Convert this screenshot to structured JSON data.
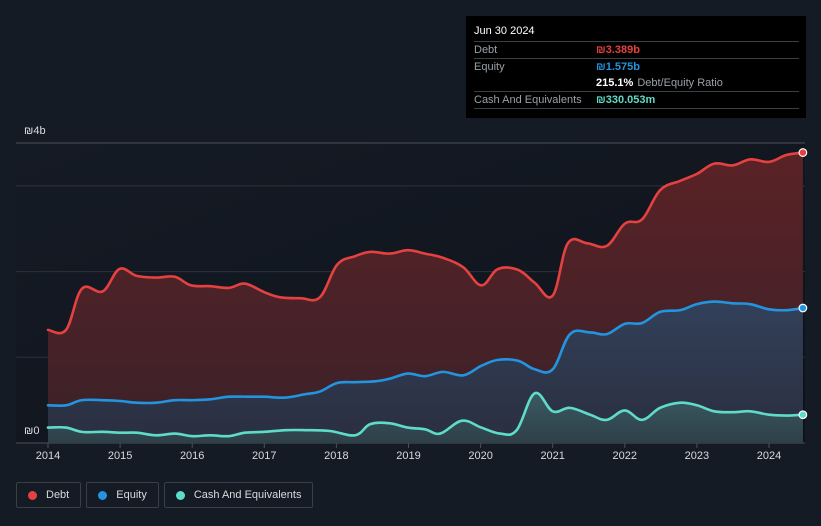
{
  "tooltip": {
    "date": "Jun 30 2024",
    "debt_label": "Debt",
    "debt_value": "₪3.389b",
    "equity_label": "Equity",
    "equity_value": "₪1.575b",
    "ratio_value": "215.1%",
    "ratio_label": "Debt/Equity Ratio",
    "cash_label": "Cash And Equivalents",
    "cash_value": "₪330.053m"
  },
  "colors": {
    "debt": "#e64141",
    "equity": "#2394df",
    "cash": "#5fdcc8"
  },
  "legend": [
    {
      "label": "Debt",
      "color": "#e64141"
    },
    {
      "label": "Equity",
      "color": "#2394df"
    },
    {
      "label": "Cash And Equivalents",
      "color": "#5fdcc8"
    }
  ],
  "chart_data": {
    "type": "area",
    "title": "",
    "xlabel": "",
    "ylabel": "",
    "unit": "₪ billions",
    "ylim": [
      0,
      3.5
    ],
    "xlim": [
      2014.0,
      2024.5
    ],
    "y_tick_labels": [
      {
        "value": 0,
        "label": "₪0"
      },
      {
        "value": 4,
        "label": "₪4b"
      }
    ],
    "gridlines_at": [
      1,
      2,
      3
    ],
    "x_tick_labels": [
      "2014",
      "2015",
      "2016",
      "2017",
      "2018",
      "2019",
      "2020",
      "2021",
      "2022",
      "2023",
      "2024"
    ],
    "grid": true,
    "legend_position": "bottom-left",
    "series": [
      {
        "name": "Debt",
        "points": [
          [
            2014.0,
            1.32
          ],
          [
            2014.25,
            1.32
          ],
          [
            2014.47,
            1.8
          ],
          [
            2014.76,
            1.77
          ],
          [
            2014.99,
            2.03
          ],
          [
            2015.23,
            1.95
          ],
          [
            2015.5,
            1.93
          ],
          [
            2015.76,
            1.94
          ],
          [
            2015.98,
            1.84
          ],
          [
            2016.25,
            1.83
          ],
          [
            2016.51,
            1.81
          ],
          [
            2016.73,
            1.86
          ],
          [
            2017.0,
            1.76
          ],
          [
            2017.22,
            1.7
          ],
          [
            2017.5,
            1.69
          ],
          [
            2017.77,
            1.7
          ],
          [
            2018.01,
            2.08
          ],
          [
            2018.26,
            2.18
          ],
          [
            2018.47,
            2.23
          ],
          [
            2018.74,
            2.21
          ],
          [
            2018.99,
            2.25
          ],
          [
            2019.23,
            2.21
          ],
          [
            2019.48,
            2.16
          ],
          [
            2019.76,
            2.05
          ],
          [
            2020.01,
            1.84
          ],
          [
            2020.24,
            2.03
          ],
          [
            2020.52,
            2.02
          ],
          [
            2020.75,
            1.87
          ],
          [
            2021.0,
            1.72
          ],
          [
            2021.21,
            2.33
          ],
          [
            2021.48,
            2.33
          ],
          [
            2021.75,
            2.3
          ],
          [
            2022.0,
            2.56
          ],
          [
            2022.24,
            2.61
          ],
          [
            2022.49,
            2.95
          ],
          [
            2022.77,
            3.06
          ],
          [
            2023.0,
            3.14
          ],
          [
            2023.24,
            3.26
          ],
          [
            2023.5,
            3.24
          ],
          [
            2023.74,
            3.31
          ],
          [
            2024.0,
            3.28
          ],
          [
            2024.24,
            3.36
          ],
          [
            2024.47,
            3.389
          ]
        ]
      },
      {
        "name": "Equity",
        "points": [
          [
            2014.0,
            0.44
          ],
          [
            2014.25,
            0.44
          ],
          [
            2014.47,
            0.5
          ],
          [
            2014.76,
            0.5
          ],
          [
            2015.0,
            0.49
          ],
          [
            2015.23,
            0.47
          ],
          [
            2015.5,
            0.47
          ],
          [
            2015.76,
            0.5
          ],
          [
            2016.0,
            0.5
          ],
          [
            2016.25,
            0.51
          ],
          [
            2016.51,
            0.54
          ],
          [
            2016.8,
            0.54
          ],
          [
            2017.0,
            0.54
          ],
          [
            2017.29,
            0.53
          ],
          [
            2017.57,
            0.57
          ],
          [
            2017.77,
            0.6
          ],
          [
            2018.01,
            0.7
          ],
          [
            2018.26,
            0.71
          ],
          [
            2018.54,
            0.72
          ],
          [
            2018.74,
            0.75
          ],
          [
            2018.99,
            0.81
          ],
          [
            2019.23,
            0.78
          ],
          [
            2019.48,
            0.83
          ],
          [
            2019.76,
            0.79
          ],
          [
            2020.01,
            0.9
          ],
          [
            2020.24,
            0.97
          ],
          [
            2020.52,
            0.96
          ],
          [
            2020.75,
            0.86
          ],
          [
            2021.0,
            0.86
          ],
          [
            2021.24,
            1.27
          ],
          [
            2021.52,
            1.29
          ],
          [
            2021.75,
            1.27
          ],
          [
            2022.0,
            1.39
          ],
          [
            2022.24,
            1.4
          ],
          [
            2022.49,
            1.53
          ],
          [
            2022.77,
            1.55
          ],
          [
            2023.0,
            1.62
          ],
          [
            2023.24,
            1.65
          ],
          [
            2023.5,
            1.63
          ],
          [
            2023.74,
            1.62
          ],
          [
            2024.0,
            1.56
          ],
          [
            2024.24,
            1.55
          ],
          [
            2024.47,
            1.575
          ]
        ]
      },
      {
        "name": "Cash And Equivalents",
        "points": [
          [
            2014.0,
            0.18
          ],
          [
            2014.25,
            0.18
          ],
          [
            2014.47,
            0.13
          ],
          [
            2014.76,
            0.13
          ],
          [
            2015.0,
            0.12
          ],
          [
            2015.23,
            0.12
          ],
          [
            2015.5,
            0.09
          ],
          [
            2015.76,
            0.11
          ],
          [
            2016.0,
            0.08
          ],
          [
            2016.25,
            0.09
          ],
          [
            2016.51,
            0.08
          ],
          [
            2016.73,
            0.12
          ],
          [
            2017.0,
            0.13
          ],
          [
            2017.29,
            0.15
          ],
          [
            2017.57,
            0.15
          ],
          [
            2017.91,
            0.14
          ],
          [
            2018.26,
            0.09
          ],
          [
            2018.47,
            0.22
          ],
          [
            2018.74,
            0.23
          ],
          [
            2018.99,
            0.18
          ],
          [
            2019.23,
            0.16
          ],
          [
            2019.44,
            0.11
          ],
          [
            2019.74,
            0.26
          ],
          [
            2020.01,
            0.18
          ],
          [
            2020.27,
            0.11
          ],
          [
            2020.5,
            0.15
          ],
          [
            2020.75,
            0.58
          ],
          [
            2021.0,
            0.37
          ],
          [
            2021.24,
            0.41
          ],
          [
            2021.52,
            0.33
          ],
          [
            2021.75,
            0.27
          ],
          [
            2022.0,
            0.38
          ],
          [
            2022.24,
            0.27
          ],
          [
            2022.49,
            0.41
          ],
          [
            2022.77,
            0.47
          ],
          [
            2023.0,
            0.44
          ],
          [
            2023.24,
            0.37
          ],
          [
            2023.5,
            0.36
          ],
          [
            2023.74,
            0.37
          ],
          [
            2024.0,
            0.33
          ],
          [
            2024.24,
            0.32
          ],
          [
            2024.47,
            0.33
          ]
        ]
      }
    ]
  }
}
